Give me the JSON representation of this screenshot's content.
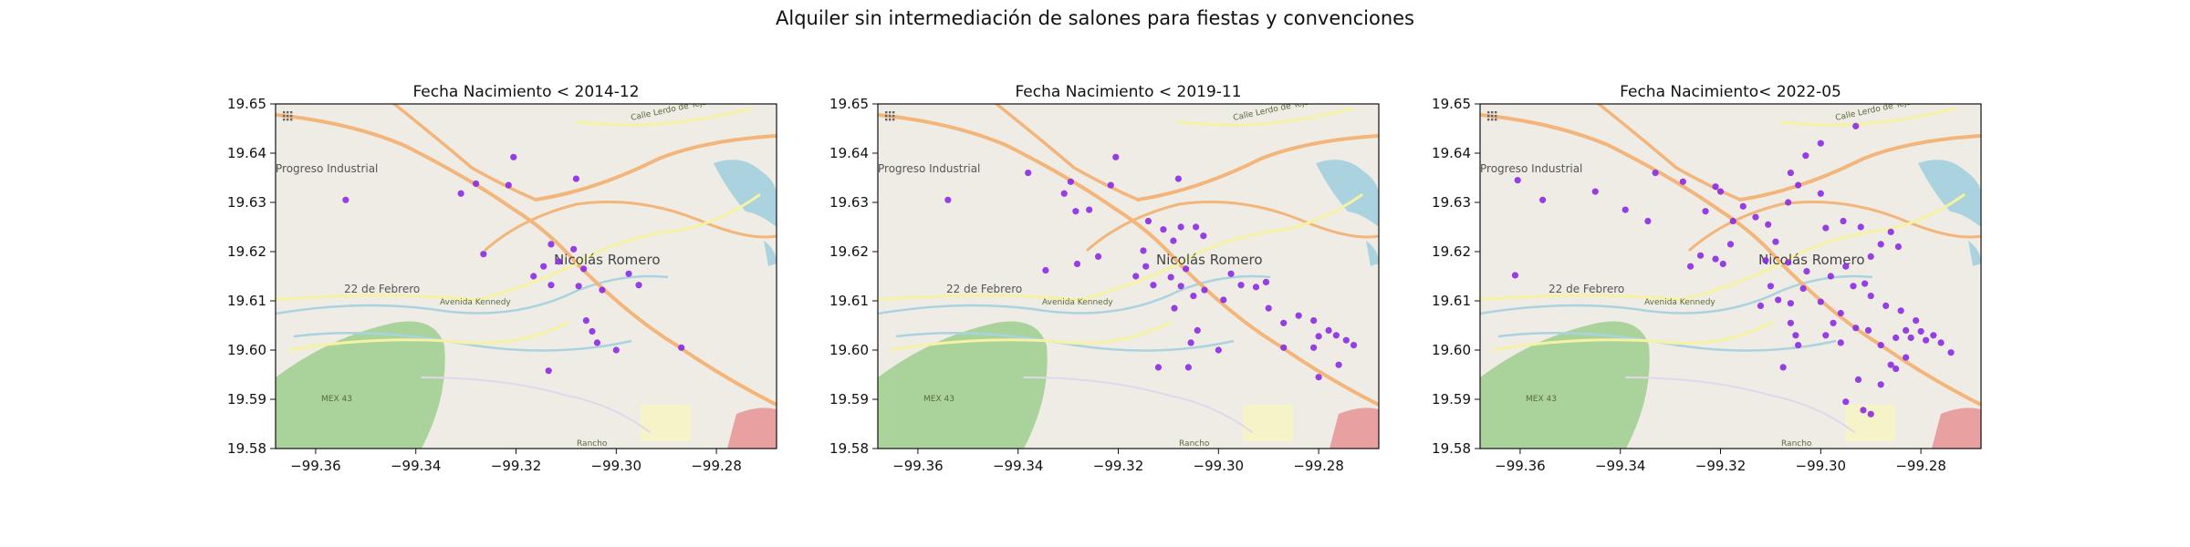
{
  "suptitle": "Alquiler sin intermediación de salones para fiestas y convenciones",
  "map_labels": {
    "industrial": "Progreso Industrial",
    "city": "Nicolás Romero",
    "febrero": "22 de Febrero",
    "avenida": "Avenida Kennedy",
    "mex": "MEX 43",
    "rancho": "Rancho",
    "calle": "Calle Lerdo de Tejada"
  },
  "colors": {
    "point": "#8a2be2",
    "land": "#efece6",
    "park": "#a9d39a",
    "water": "#aad3df",
    "road_major": "#f3b57a",
    "road_minor": "#f6f2a3"
  },
  "chart_data": [
    {
      "type": "scatter",
      "title": "Fecha Nacimiento < 2014-12",
      "xlim": [
        -99.368,
        -99.268
      ],
      "ylim": [
        19.58,
        19.65
      ],
      "xticks": [
        -99.36,
        -99.34,
        -99.32,
        -99.3,
        -99.28
      ],
      "xtick_labels": [
        "−99.36",
        "−99.34",
        "−99.32",
        "−99.30",
        "−99.28"
      ],
      "yticks": [
        19.58,
        19.59,
        19.6,
        19.61,
        19.62,
        19.63,
        19.64,
        19.65
      ],
      "ytick_labels": [
        "19.58",
        "19.59",
        "19.60",
        "19.61",
        "19.62",
        "19.63",
        "19.64",
        "19.65"
      ],
      "points": [
        [
          -99.354,
          19.6305
        ],
        [
          -99.331,
          19.6318
        ],
        [
          -99.328,
          19.6338
        ],
        [
          -99.3215,
          19.6335
        ],
        [
          -99.3205,
          19.6392
        ],
        [
          -99.308,
          19.6348
        ],
        [
          -99.3265,
          19.6195
        ],
        [
          -99.313,
          19.6215
        ],
        [
          -99.3115,
          19.618
        ],
        [
          -99.3145,
          19.617
        ],
        [
          -99.3165,
          19.615
        ],
        [
          -99.3085,
          19.6205
        ],
        [
          -99.3065,
          19.6165
        ],
        [
          -99.3075,
          19.613
        ],
        [
          -99.313,
          19.6132
        ],
        [
          -99.3028,
          19.6122
        ],
        [
          -99.2975,
          19.6155
        ],
        [
          -99.2955,
          19.6132
        ],
        [
          -99.306,
          19.606
        ],
        [
          -99.3048,
          19.6038
        ],
        [
          -99.3038,
          19.6015
        ],
        [
          -99.3,
          19.6
        ],
        [
          -99.3135,
          19.5958
        ],
        [
          -99.287,
          19.6005
        ]
      ]
    },
    {
      "type": "scatter",
      "title": "Fecha Nacimiento < 2019-11",
      "xlim": [
        -99.368,
        -99.268
      ],
      "ylim": [
        19.58,
        19.65
      ],
      "xticks": [
        -99.36,
        -99.34,
        -99.32,
        -99.3,
        -99.28
      ],
      "xtick_labels": [
        "−99.36",
        "−99.34",
        "−99.32",
        "−99.30",
        "−99.28"
      ],
      "yticks": [
        19.58,
        19.59,
        19.6,
        19.61,
        19.62,
        19.63,
        19.64,
        19.65
      ],
      "ytick_labels": [
        "19.58",
        "19.59",
        "19.60",
        "19.61",
        "19.62",
        "19.63",
        "19.64",
        "19.65"
      ],
      "points": [
        [
          -99.354,
          19.6305
        ],
        [
          -99.338,
          19.636
        ],
        [
          -99.3295,
          19.6342
        ],
        [
          -99.3308,
          19.6318
        ],
        [
          -99.3285,
          19.6282
        ],
        [
          -99.3258,
          19.6285
        ],
        [
          -99.3205,
          19.6392
        ],
        [
          -99.3215,
          19.6335
        ],
        [
          -99.308,
          19.6348
        ],
        [
          -99.314,
          19.6262
        ],
        [
          -99.311,
          19.6245
        ],
        [
          -99.3075,
          19.625
        ],
        [
          -99.3045,
          19.625
        ],
        [
          -99.303,
          19.6232
        ],
        [
          -99.309,
          19.6222
        ],
        [
          -99.315,
          19.6202
        ],
        [
          -99.324,
          19.619
        ],
        [
          -99.3282,
          19.6175
        ],
        [
          -99.3345,
          19.6162
        ],
        [
          -99.3165,
          19.615
        ],
        [
          -99.3145,
          19.617
        ],
        [
          -99.3065,
          19.6165
        ],
        [
          -99.3095,
          19.6148
        ],
        [
          -99.3075,
          19.613
        ],
        [
          -99.305,
          19.611
        ],
        [
          -99.313,
          19.6132
        ],
        [
          -99.3028,
          19.6122
        ],
        [
          -99.2975,
          19.6155
        ],
        [
          -99.2955,
          19.6132
        ],
        [
          -99.2925,
          19.6128
        ],
        [
          -99.2905,
          19.6138
        ],
        [
          -99.299,
          19.6102
        ],
        [
          -99.3088,
          19.6085
        ],
        [
          -99.3042,
          19.604
        ],
        [
          -99.3055,
          19.6015
        ],
        [
          -99.312,
          19.5965
        ],
        [
          -99.306,
          19.5965
        ],
        [
          -99.3,
          19.6
        ],
        [
          -99.29,
          19.6085
        ],
        [
          -99.287,
          19.6055
        ],
        [
          -99.284,
          19.607
        ],
        [
          -99.281,
          19.606
        ],
        [
          -99.28,
          19.6028
        ],
        [
          -99.278,
          19.604
        ],
        [
          -99.2765,
          19.603
        ],
        [
          -99.2745,
          19.602
        ],
        [
          -99.273,
          19.601
        ],
        [
          -99.281,
          19.6005
        ],
        [
          -99.287,
          19.6005
        ],
        [
          -99.276,
          19.597
        ],
        [
          -99.28,
          19.5945
        ]
      ]
    },
    {
      "type": "scatter",
      "title": "Fecha Nacimiento< 2022-05",
      "xlim": [
        -99.368,
        -99.268
      ],
      "ylim": [
        19.58,
        19.65
      ],
      "xticks": [
        -99.36,
        -99.34,
        -99.32,
        -99.3,
        -99.28
      ],
      "xtick_labels": [
        "−99.36",
        "−99.34",
        "−99.32",
        "−99.30",
        "−99.28"
      ],
      "yticks": [
        19.58,
        19.59,
        19.6,
        19.61,
        19.62,
        19.63,
        19.64,
        19.65
      ],
      "ytick_labels": [
        "19.58",
        "19.59",
        "19.60",
        "19.61",
        "19.62",
        "19.63",
        "19.64",
        "19.65"
      ],
      "points": [
        [
          -99.3605,
          19.6345
        ],
        [
          -99.3555,
          19.6305
        ],
        [
          -99.361,
          19.6152
        ],
        [
          -99.345,
          19.6322
        ],
        [
          -99.339,
          19.6285
        ],
        [
          -99.3345,
          19.6262
        ],
        [
          -99.333,
          19.636
        ],
        [
          -99.3275,
          19.6342
        ],
        [
          -99.321,
          19.6332
        ],
        [
          -99.32,
          19.6322
        ],
        [
          -99.323,
          19.6282
        ],
        [
          -99.3155,
          19.6292
        ],
        [
          -99.3175,
          19.6262
        ],
        [
          -99.313,
          19.627
        ],
        [
          -99.3105,
          19.6255
        ],
        [
          -99.3065,
          19.63
        ],
        [
          -99.3045,
          19.6335
        ],
        [
          -99.306,
          19.636
        ],
        [
          -99.3,
          19.6318
        ],
        [
          -99.303,
          19.6395
        ],
        [
          -99.3,
          19.642
        ],
        [
          -99.293,
          19.6455
        ],
        [
          -99.299,
          19.6248
        ],
        [
          -99.2955,
          19.6262
        ],
        [
          -99.292,
          19.625
        ],
        [
          -99.318,
          19.6215
        ],
        [
          -99.321,
          19.6185
        ],
        [
          -99.3195,
          19.6175
        ],
        [
          -99.324,
          19.6192
        ],
        [
          -99.326,
          19.617
        ],
        [
          -99.311,
          19.6182
        ],
        [
          -99.309,
          19.622
        ],
        [
          -99.3065,
          19.6178
        ],
        [
          -99.3028,
          19.616
        ],
        [
          -99.298,
          19.615
        ],
        [
          -99.295,
          19.617
        ],
        [
          -99.29,
          19.619
        ],
        [
          -99.288,
          19.6215
        ],
        [
          -99.286,
          19.624
        ],
        [
          -99.2845,
          19.621
        ],
        [
          -99.31,
          19.613
        ],
        [
          -99.3085,
          19.6102
        ],
        [
          -99.306,
          19.6095
        ],
        [
          -99.3035,
          19.6125
        ],
        [
          -99.3,
          19.6098
        ],
        [
          -99.296,
          19.6075
        ],
        [
          -99.2935,
          19.613
        ],
        [
          -99.2912,
          19.6135
        ],
        [
          -99.29,
          19.611
        ],
        [
          -99.287,
          19.609
        ],
        [
          -99.284,
          19.608
        ],
        [
          -99.281,
          19.606
        ],
        [
          -99.312,
          19.609
        ],
        [
          -99.306,
          19.6055
        ],
        [
          -99.305,
          19.603
        ],
        [
          -99.3045,
          19.601
        ],
        [
          -99.299,
          19.603
        ],
        [
          -99.296,
          19.6015
        ],
        [
          -99.293,
          19.6045
        ],
        [
          -99.2905,
          19.604
        ],
        [
          -99.288,
          19.601
        ],
        [
          -99.285,
          19.6025
        ],
        [
          -99.283,
          19.604
        ],
        [
          -99.282,
          19.6025
        ],
        [
          -99.28,
          19.6038
        ],
        [
          -99.279,
          19.602
        ],
        [
          -99.2775,
          19.603
        ],
        [
          -99.276,
          19.6015
        ],
        [
          -99.274,
          19.5995
        ],
        [
          -99.283,
          19.5985
        ],
        [
          -99.286,
          19.597
        ],
        [
          -99.2925,
          19.594
        ],
        [
          -99.288,
          19.593
        ],
        [
          -99.285,
          19.5962
        ],
        [
          -99.3075,
          19.5965
        ],
        [
          -99.295,
          19.5895
        ],
        [
          -99.2915,
          19.5878
        ],
        [
          -99.29,
          19.587
        ],
        [
          -99.2975,
          19.6055
        ]
      ]
    }
  ]
}
